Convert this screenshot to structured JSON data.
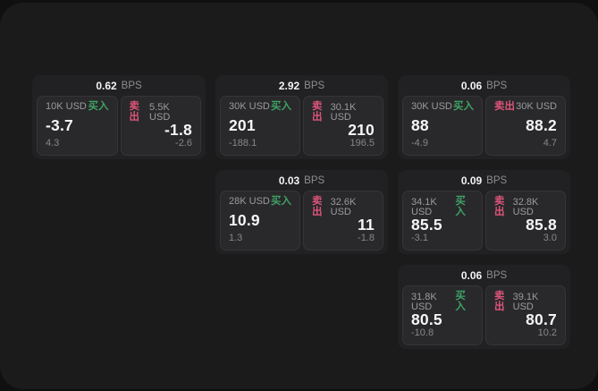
{
  "labels": {
    "bps_unit": "BPS",
    "buy": "买入",
    "sell": "卖出"
  },
  "colors": {
    "buy": "#3fa164",
    "sell": "#dd5479",
    "panel": "#1b1b1c",
    "card": "#212123",
    "tile": "#29292b"
  },
  "cards": [
    {
      "bps": "0.62",
      "buy": {
        "notional": "10K USD",
        "price": "-3.7",
        "delta": "4.3"
      },
      "sell": {
        "notional": "5.5K USD",
        "price": "-1.8",
        "delta": "-2.6"
      }
    },
    {
      "bps": "2.92",
      "buy": {
        "notional": "30K USD",
        "price": "201",
        "delta": "-188.1"
      },
      "sell": {
        "notional": "30.1K USD",
        "price": "210",
        "delta": "196.5"
      }
    },
    {
      "bps": "0.06",
      "buy": {
        "notional": "30K USD",
        "price": "88",
        "delta": "-4.9"
      },
      "sell": {
        "notional": "30K USD",
        "price": "88.2",
        "delta": "4.7"
      }
    },
    {
      "bps": "0.03",
      "buy": {
        "notional": "28K USD",
        "price": "10.9",
        "delta": "1.3"
      },
      "sell": {
        "notional": "32.6K USD",
        "price": "11",
        "delta": "-1.8"
      }
    },
    {
      "bps": "0.09",
      "buy": {
        "notional": "34.1K USD",
        "price": "85.5",
        "delta": "-3.1"
      },
      "sell": {
        "notional": "32.8K USD",
        "price": "85.8",
        "delta": "3.0"
      }
    },
    {
      "bps": "0.06",
      "buy": {
        "notional": "31.8K USD",
        "price": "80.5",
        "delta": "-10.8"
      },
      "sell": {
        "notional": "39.1K USD",
        "price": "80.7",
        "delta": "10.2"
      }
    }
  ]
}
